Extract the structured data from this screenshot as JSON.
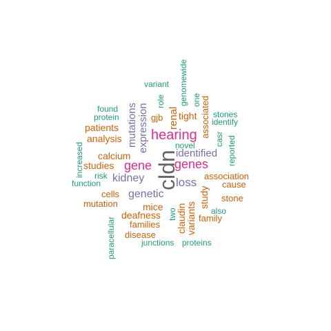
{
  "colors": {
    "teal": "#1b9e77",
    "orange": "#d95f02",
    "purple": "#7570b3",
    "magenta": "#e7298a",
    "grey": "#666666"
  },
  "words": [
    {
      "text": "cldn",
      "color": "grey",
      "vertical": true
    },
    {
      "text": "hearing",
      "color": "magenta",
      "vertical": false
    },
    {
      "text": "gene",
      "color": "magenta",
      "vertical": false
    },
    {
      "text": "genes",
      "color": "magenta",
      "vertical": false
    },
    {
      "text": "expression",
      "color": "purple",
      "vertical": true
    },
    {
      "text": "mutations",
      "color": "purple",
      "vertical": true
    },
    {
      "text": "identified",
      "color": "purple",
      "vertical": false
    },
    {
      "text": "kidney",
      "color": "purple",
      "vertical": false
    },
    {
      "text": "genetic",
      "color": "purple",
      "vertical": false
    },
    {
      "text": "loss",
      "color": "purple",
      "vertical": false
    },
    {
      "text": "renal",
      "color": "orange",
      "vertical": true
    },
    {
      "text": "associated",
      "color": "orange",
      "vertical": true
    },
    {
      "text": "tight",
      "color": "orange",
      "vertical": false
    },
    {
      "text": "gjb",
      "color": "orange",
      "vertical": false
    },
    {
      "text": "patients",
      "color": "orange",
      "vertical": false
    },
    {
      "text": "analysis",
      "color": "orange",
      "vertical": false
    },
    {
      "text": "calcium",
      "color": "orange",
      "vertical": false
    },
    {
      "text": "studies",
      "color": "orange",
      "vertical": false
    },
    {
      "text": "study",
      "color": "orange",
      "vertical": true
    },
    {
      "text": "association",
      "color": "orange",
      "vertical": false
    },
    {
      "text": "cause",
      "color": "orange",
      "vertical": false
    },
    {
      "text": "stone",
      "color": "orange",
      "vertical": false
    },
    {
      "text": "family",
      "color": "orange",
      "vertical": false
    },
    {
      "text": "cells",
      "color": "orange",
      "vertical": false
    },
    {
      "text": "mutation",
      "color": "orange",
      "vertical": false
    },
    {
      "text": "mice",
      "color": "orange",
      "vertical": false
    },
    {
      "text": "deafness",
      "color": "orange",
      "vertical": false
    },
    {
      "text": "families",
      "color": "orange",
      "vertical": false
    },
    {
      "text": "disease",
      "color": "orange",
      "vertical": false
    },
    {
      "text": "claudin",
      "color": "orange",
      "vertical": true
    },
    {
      "text": "variants",
      "color": "orange",
      "vertical": true
    },
    {
      "text": "genomewide",
      "color": "teal",
      "vertical": true
    },
    {
      "text": "one",
      "color": "teal",
      "vertical": true
    },
    {
      "text": "role",
      "color": "teal",
      "vertical": true
    },
    {
      "text": "variant",
      "color": "teal",
      "vertical": false
    },
    {
      "text": "found",
      "color": "teal",
      "vertical": false
    },
    {
      "text": "protein",
      "color": "teal",
      "vertical": false
    },
    {
      "text": "stones",
      "color": "teal",
      "vertical": false
    },
    {
      "text": "identify",
      "color": "teal",
      "vertical": false
    },
    {
      "text": "casr",
      "color": "teal",
      "vertical": true
    },
    {
      "text": "reported",
      "color": "teal",
      "vertical": true
    },
    {
      "text": "novel",
      "color": "teal",
      "vertical": false
    },
    {
      "text": "increased",
      "color": "teal",
      "vertical": true
    },
    {
      "text": "risk",
      "color": "teal",
      "vertical": false
    },
    {
      "text": "function",
      "color": "teal",
      "vertical": false
    },
    {
      "text": "two",
      "color": "teal",
      "vertical": true
    },
    {
      "text": "also",
      "color": "teal",
      "vertical": false
    },
    {
      "text": "paracellular",
      "color": "teal",
      "vertical": true
    },
    {
      "text": "junctions",
      "color": "teal",
      "vertical": false
    },
    {
      "text": "proteins",
      "color": "teal",
      "vertical": false
    }
  ]
}
